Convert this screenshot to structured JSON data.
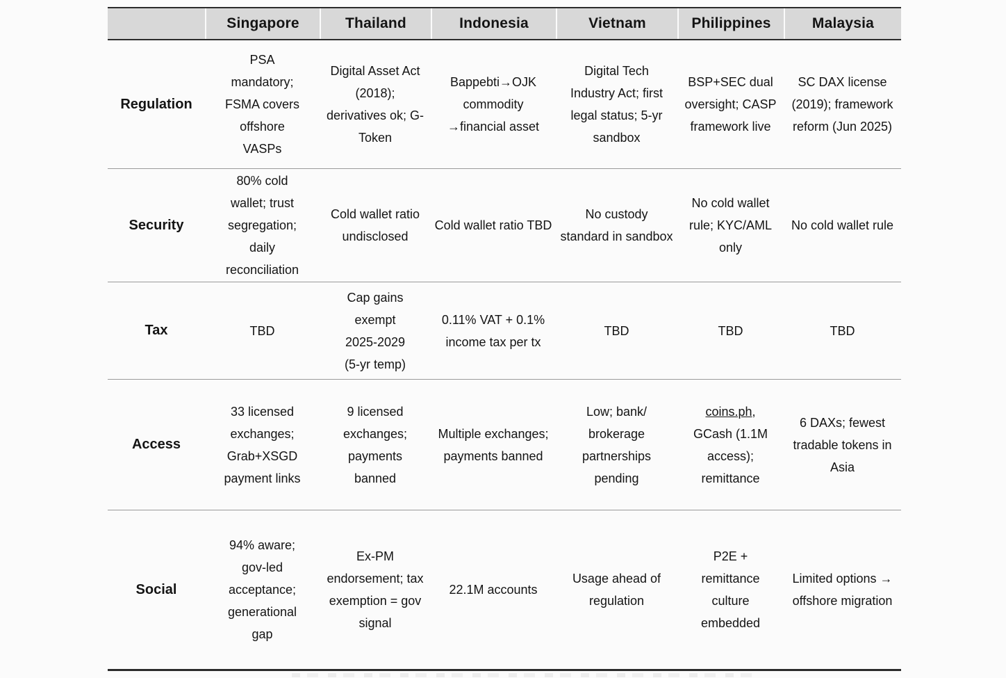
{
  "table": {
    "corner_label": "",
    "columns": [
      "Singapore",
      "Thailand",
      "Indonesia",
      "Vietnam",
      "Philippines",
      "Malaysia"
    ],
    "rows": [
      {
        "label": "Regulation",
        "cells": [
          "PSA\nmandatory;\nFSMA covers\noffshore\nVASPs",
          "Digital Asset Act\n(2018);\nderivatives ok; G-\nToken",
          "Bappebti→OJK\ncommodity\n→financial asset",
          "Digital Tech\nIndustry Act; first\nlegal status; 5-yr\nsandbox",
          "BSP+SEC dual\noversight; CASP\nframework live",
          "SC DAX license\n(2019); framework\nreform (Jun 2025)"
        ]
      },
      {
        "label": "Security",
        "cells": [
          "80% cold\nwallet; trust\nsegregation;\ndaily\nreconciliation",
          "Cold wallet ratio\nundisclosed",
          "Cold wallet ratio TBD",
          "No custody\nstandard in sandbox",
          "No cold wallet\nrule; KYC/AML\nonly",
          "No cold wallet rule"
        ]
      },
      {
        "label": "Tax",
        "cells": [
          "TBD",
          "Cap gains\nexempt\n2025-2029\n(5-yr temp)",
          "0.11% VAT + 0.1%\nincome tax per tx",
          "TBD",
          "TBD",
          "TBD"
        ]
      },
      {
        "label": "Access",
        "ph_link": "coins.ph",
        "cells": [
          "33 licensed\nexchanges;\nGrab+XSGD\npayment links",
          "9 licensed\nexchanges;\npayments\nbanned",
          "Multiple exchanges;\npayments banned",
          "Low; bank/\nbrokerage\npartnerships\npending",
          ",\nGCash (1.1M\naccess);\nremittance",
          "6 DAXs; fewest\ntradable tokens in\nAsia"
        ]
      },
      {
        "label": "Social",
        "cells": [
          "94% aware;\ngov-led\nacceptance;\ngenerational\ngap",
          "Ex-PM\nendorsement; tax\nexemption = gov\nsignal",
          "22.1M accounts",
          "Usage ahead of\nregulation",
          "P2E +\nremittance\nculture\nembedded",
          "Limited options →\noffshore migration"
        ]
      }
    ],
    "colors": {
      "header_bg": "#d8d8d8",
      "rule_dark": "#2b2b2b",
      "rule_light": "#9a9a9a",
      "page_bg": "#fbfbfb",
      "text": "#141414"
    }
  }
}
